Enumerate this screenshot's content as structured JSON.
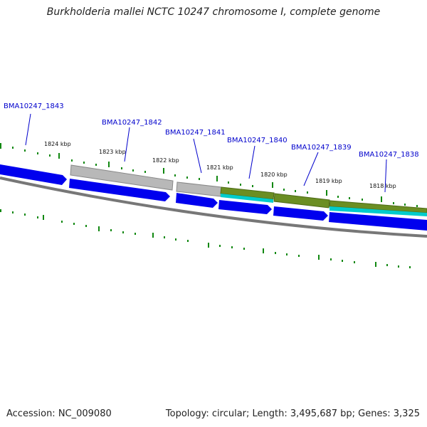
{
  "title": "Burkholderia mallei NCTC 10247 chromosome I, complete genome",
  "footer": {
    "accession": "Accession: NC_009080",
    "stats": "Topology: circular; Length: 3,495,687 bp; Genes: 3,325"
  },
  "colors": {
    "cds": "#0000ee",
    "gene_grey": "#b4b4b4",
    "gene_olive": "#6b8e23",
    "gene_cyan": "#00cccc",
    "backbone": "#777777",
    "ticks": "#118811",
    "label_text": "#0000cc"
  },
  "scale_labels": [
    "1824 kbp",
    "1823 kbp",
    "1822 kbp",
    "1821 kbp",
    "1820 kbp",
    "1819 kbp",
    "1818 kbp"
  ],
  "gene_labels": [
    "BMA10247_1843",
    "BMA10247_1842",
    "BMA10247_1841",
    "BMA10247_1840",
    "BMA10247_1839",
    "BMA10247_1838"
  ]
}
